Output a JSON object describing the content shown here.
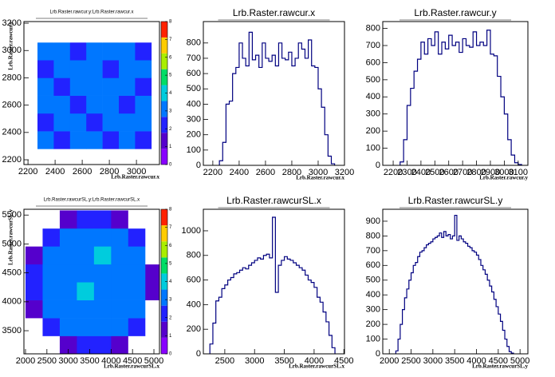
{
  "chart_data": [
    {
      "type": "heatmap",
      "title": "Lrb.Raster.rawcur.y:Lrb.Raster.rawcur.x",
      "x_label": "Lrb.Raster.rawcur.x",
      "y_label": "Lrb.Raster.rawcur.y",
      "xlim": [
        2170,
        3170
      ],
      "ylim": [
        2165,
        3212
      ],
      "xticks": [
        2200,
        2400,
        2600,
        2800,
        3000
      ],
      "yticks": [
        2200,
        2400,
        2600,
        2800,
        3000,
        3200
      ],
      "zlim": [
        0,
        8
      ],
      "zticks": [
        0,
        1,
        2,
        3,
        4,
        5,
        6,
        7,
        8
      ],
      "palette": [
        "#ffffff",
        "#5500cc",
        "#2222ff",
        "#0077ff",
        "#00ccdd",
        "#00dd66",
        "#aaee00",
        "#ffcc00",
        "#ff2200"
      ],
      "x_edges": [
        2150,
        2270,
        2390,
        2510,
        2630,
        2750,
        2870,
        2990,
        3110
      ],
      "y_edges": [
        2150,
        2280,
        2410,
        2540,
        2670,
        2800,
        2930,
        3060,
        3190
      ],
      "z": [
        [
          0,
          0,
          0,
          0,
          0,
          0,
          0,
          0
        ],
        [
          0,
          3,
          2,
          3,
          3,
          2,
          3,
          2
        ],
        [
          0,
          2,
          3,
          3,
          2,
          3,
          3,
          3
        ],
        [
          0,
          3,
          3,
          2,
          3,
          3,
          2,
          3
        ],
        [
          0,
          3,
          2,
          3,
          3,
          3,
          3,
          2
        ],
        [
          0,
          2,
          3,
          3,
          3,
          2,
          3,
          3
        ],
        [
          0,
          3,
          3,
          2,
          3,
          3,
          3,
          2
        ],
        [
          0,
          0,
          0,
          0,
          0,
          0,
          0,
          0
        ]
      ]
    },
    {
      "type": "histogram",
      "title": "Lrb.Raster.rawcur.x",
      "x_label": "Lrb.Raster.rawcur.x",
      "color": "#000080",
      "xlim": [
        2128,
        3200
      ],
      "ylim": [
        0,
        940
      ],
      "xticks": [
        2200,
        2400,
        2600,
        2800,
        3000,
        3200
      ],
      "yticks": [
        0,
        100,
        200,
        300,
        400,
        500,
        600,
        700,
        800
      ],
      "bins": [
        2250,
        2275,
        2300,
        2325,
        2350,
        2375,
        2400,
        2425,
        2450,
        2475,
        2500,
        2525,
        2550,
        2575,
        2600,
        2625,
        2650,
        2675,
        2700,
        2725,
        2750,
        2775,
        2800,
        2825,
        2850,
        2875,
        2900,
        2925,
        2950,
        2975,
        3000,
        3025,
        3050,
        3075,
        3100,
        3125
      ],
      "values": [
        30,
        150,
        400,
        420,
        600,
        640,
        800,
        700,
        650,
        870,
        690,
        720,
        640,
        800,
        700,
        680,
        720,
        650,
        800,
        700,
        690,
        740,
        650,
        700,
        800,
        760,
        700,
        820,
        650,
        640,
        500,
        380,
        200,
        60,
        10
      ]
    },
    {
      "type": "histogram",
      "title": "Lrb.Raster.rawcur.y",
      "x_label": "Lrb.Raster.rawcur.y",
      "color": "#000080",
      "xlim": [
        2125,
        3170
      ],
      "ylim": [
        0,
        840
      ],
      "xticks": [
        2200,
        2300,
        2400,
        2500,
        2600,
        2700,
        2800,
        2900,
        3000,
        3100
      ],
      "yticks": [
        0,
        100,
        200,
        300,
        400,
        500,
        600,
        700,
        800
      ],
      "bins": [
        2250,
        2275,
        2300,
        2325,
        2350,
        2375,
        2400,
        2425,
        2450,
        2475,
        2500,
        2525,
        2550,
        2575,
        2600,
        2625,
        2650,
        2675,
        2700,
        2725,
        2750,
        2775,
        2800,
        2825,
        2850,
        2875,
        2900,
        2925,
        2950,
        2975,
        3000,
        3025,
        3050,
        3075,
        3100,
        3125
      ],
      "values": [
        20,
        150,
        350,
        450,
        550,
        620,
        720,
        650,
        740,
        700,
        780,
        650,
        720,
        680,
        760,
        700,
        720,
        660,
        740,
        700,
        690,
        780,
        700,
        720,
        700,
        790,
        650,
        640,
        520,
        400,
        300,
        150,
        60,
        15,
        5
      ]
    },
    {
      "type": "heatmap",
      "title": "Lrb.Raster.rawcurSL.y:Lrb.Raster.rawcurSL.x",
      "x_label": "Lrb.Raster.rawcurSL.x",
      "y_label": "Lrb.Raster.rawcurSL.y",
      "xlim": [
        1963,
        5130
      ],
      "ylim": [
        3100,
        5600
      ],
      "xticks": [
        2000,
        2500,
        3000,
        3500,
        4000,
        4500,
        5000
      ],
      "yticks": [
        3500,
        4000,
        4500,
        5000,
        5500
      ],
      "zlim": [
        0,
        8
      ],
      "zticks": [
        0,
        1,
        2,
        3,
        4,
        5,
        6,
        7,
        8
      ],
      "palette": [
        "#ffffff",
        "#5500cc",
        "#2222ff",
        "#0077ff",
        "#00ccdd",
        "#00dd66",
        "#aaee00",
        "#ffcc00",
        "#ff2200"
      ],
      "x_edges": [
        2000,
        2400,
        2800,
        3200,
        3600,
        4000,
        4400,
        4800,
        5200
      ],
      "y_edges": [
        3100,
        3410,
        3720,
        4030,
        4340,
        4650,
        4960,
        5270,
        5580
      ],
      "z": [
        [
          0,
          0,
          1,
          2,
          2,
          1,
          0,
          0
        ],
        [
          0,
          2,
          3,
          3,
          3,
          3,
          2,
          0
        ],
        [
          1,
          3,
          3,
          3,
          3,
          3,
          3,
          0
        ],
        [
          2,
          3,
          3,
          4,
          3,
          3,
          3,
          1
        ],
        [
          2,
          3,
          3,
          3,
          3,
          3,
          3,
          1
        ],
        [
          1,
          3,
          3,
          3,
          4,
          3,
          3,
          0
        ],
        [
          0,
          2,
          3,
          3,
          3,
          3,
          2,
          0
        ],
        [
          0,
          0,
          1,
          2,
          2,
          1,
          0,
          0
        ]
      ]
    },
    {
      "type": "histogram",
      "title": "Lrb.Raster.rawcurSL.x",
      "x_label": "Lrb.Raster.rawcurSL.x",
      "color": "#000080",
      "xlim": [
        2140,
        4510
      ],
      "ylim": [
        0,
        1175
      ],
      "xticks": [
        2500,
        3000,
        3500,
        4000,
        4500
      ],
      "yticks": [
        0,
        200,
        400,
        600,
        800,
        1000
      ],
      "bins": [
        2250,
        2300,
        2350,
        2400,
        2450,
        2500,
        2550,
        2600,
        2650,
        2700,
        2750,
        2800,
        2850,
        2900,
        2950,
        3000,
        3050,
        3100,
        3150,
        3200,
        3250,
        3300,
        3350,
        3400,
        3450,
        3500,
        3550,
        3600,
        3650,
        3700,
        3750,
        3800,
        3850,
        3900,
        3950,
        4000,
        4050,
        4100,
        4150,
        4200,
        4250,
        4300,
        4350
      ],
      "values": [
        80,
        250,
        430,
        460,
        530,
        560,
        600,
        620,
        650,
        660,
        680,
        700,
        690,
        720,
        740,
        760,
        780,
        770,
        800,
        810,
        780,
        1110,
        500,
        720,
        760,
        790,
        770,
        760,
        740,
        720,
        700,
        680,
        640,
        600,
        580,
        540,
        460,
        420,
        340,
        260,
        150,
        50
      ]
    },
    {
      "type": "histogram",
      "title": "Lrb.Raster.rawcurSL.y",
      "x_label": "Lrb.Raster.rawcurSL.y",
      "color": "#000080",
      "xlim": [
        1850,
        5180
      ],
      "ylim": [
        0,
        981
      ],
      "xticks": [
        2000,
        2500,
        3000,
        3500,
        4000,
        4500,
        5000
      ],
      "yticks": [
        0,
        100,
        200,
        300,
        400,
        500,
        600,
        700,
        800,
        900
      ],
      "bins": [
        2150,
        2200,
        2250,
        2300,
        2350,
        2400,
        2450,
        2500,
        2550,
        2600,
        2650,
        2700,
        2750,
        2800,
        2850,
        2900,
        2950,
        3000,
        3050,
        3100,
        3150,
        3200,
        3250,
        3300,
        3350,
        3400,
        3450,
        3500,
        3550,
        3600,
        3650,
        3700,
        3750,
        3800,
        3850,
        3900,
        3950,
        4000,
        4050,
        4100,
        4150,
        4200,
        4250,
        4300,
        4350,
        4400,
        4450,
        4500,
        4550,
        4600,
        4650,
        4700,
        4750,
        4800,
        4850
      ],
      "values": [
        20,
        100,
        200,
        300,
        380,
        440,
        500,
        550,
        600,
        620,
        660,
        690,
        700,
        720,
        740,
        750,
        760,
        780,
        790,
        800,
        820,
        790,
        830,
        800,
        810,
        780,
        800,
        940,
        770,
        800,
        780,
        760,
        750,
        730,
        720,
        700,
        690,
        670,
        640,
        600,
        570,
        540,
        500,
        460,
        420,
        370,
        320,
        270,
        220,
        160,
        100,
        50,
        15,
        5
      ]
    }
  ]
}
